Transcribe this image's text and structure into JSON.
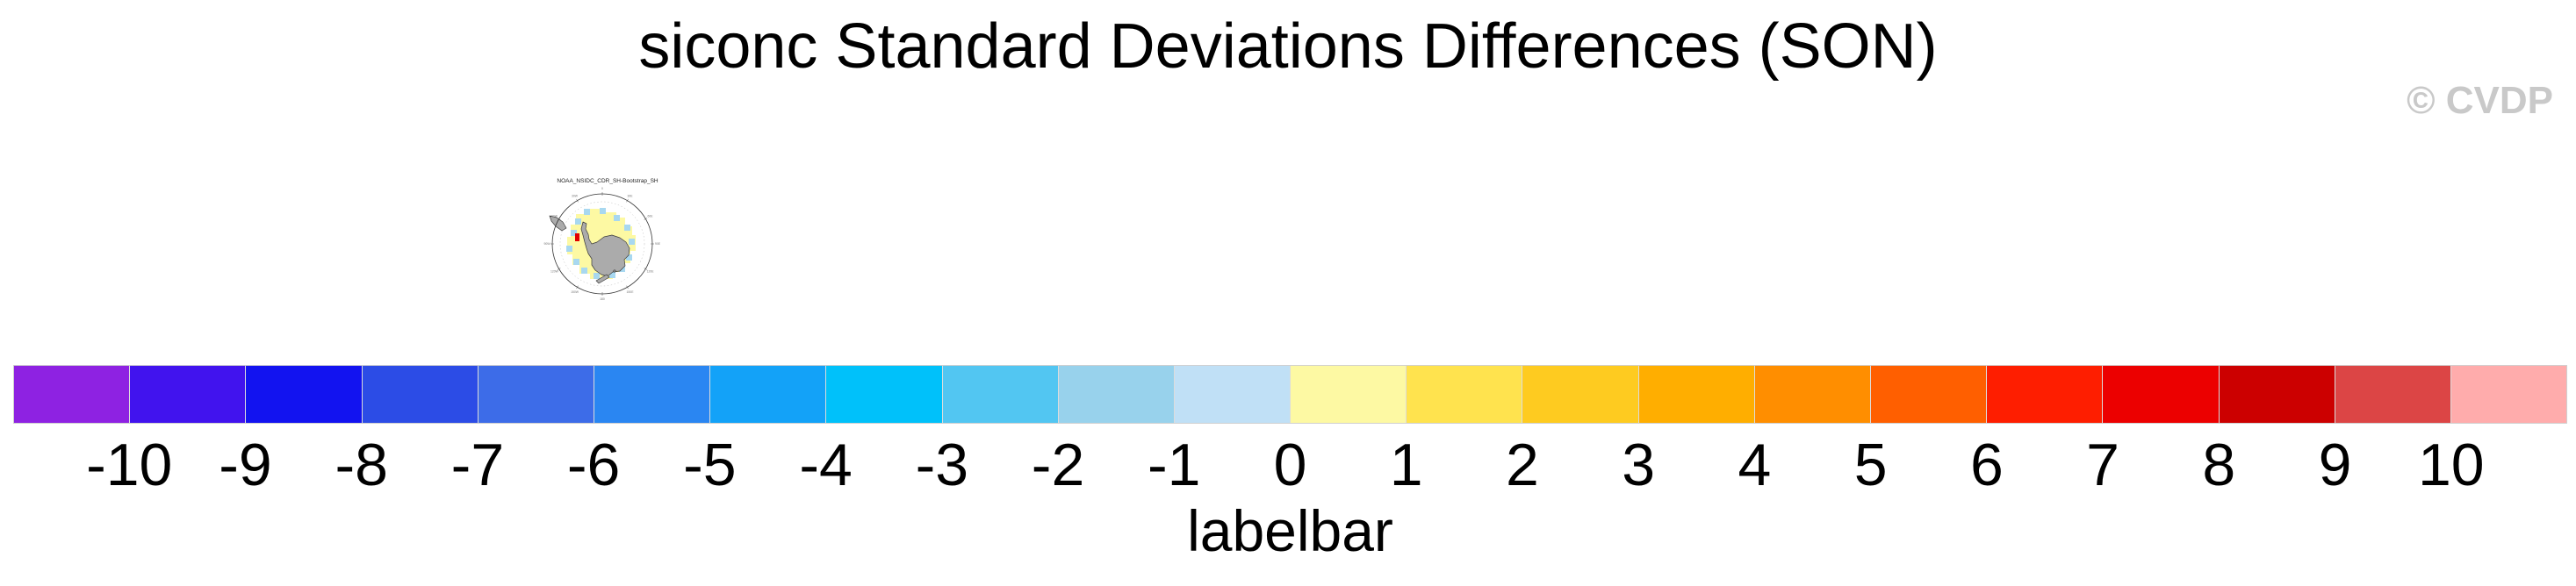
{
  "title": "siconc Standard Deviations Differences (SON)",
  "watermark": "© CVDP",
  "map": {
    "title": "NOAA_NSIDC_CDR_SH-Bootstrap_SH",
    "projection_labels": [
      "0",
      "30E",
      "60E",
      "90E",
      "120E",
      "150E",
      "180",
      "150W",
      "120W",
      "90W",
      "60W",
      "30W"
    ],
    "land_color": "#ababab",
    "fill_colors": {
      "diff_0_to_1": "#fdf9a3",
      "diff_minus1_to_0": "#a8d8f0",
      "diff_high_positive": "#e00000"
    }
  },
  "colorbar": {
    "label": "labelbar",
    "tick_labels": [
      "-10",
      "-9",
      "-8",
      "-7",
      "-6",
      "-5",
      "-4",
      "-3",
      "-2",
      "-1",
      "0",
      "1",
      "2",
      "3",
      "4",
      "5",
      "6",
      "7",
      "8",
      "9",
      "10"
    ],
    "colors": [
      "#8e22e2",
      "#4113ee",
      "#1213f0",
      "#2c4ce6",
      "#3d6ce8",
      "#2a86f2",
      "#13a2f8",
      "#00c1fa",
      "#52c6f2",
      "#98d2ec",
      "#c0e0f6",
      "#fdf9a3",
      "#ffe34e",
      "#fecb20",
      "#ffae00",
      "#ff8e00",
      "#ff5f00",
      "#fe1e00",
      "#ec0000",
      "#cc0000",
      "#dc4545",
      "#ffacac"
    ]
  },
  "chart_data": {
    "type": "heatmap",
    "title": "siconc Standard Deviations Differences (SON)",
    "panel_title": "NOAA_NSIDC_CDR_SH-Bootstrap_SH",
    "projection": "southern-hemisphere polar stereographic",
    "colorbar_label": "labelbar",
    "levels": [
      -10,
      -9,
      -8,
      -7,
      -6,
      -5,
      -4,
      -3,
      -2,
      -1,
      0,
      1,
      2,
      3,
      4,
      5,
      6,
      7,
      8,
      9,
      10
    ],
    "colors": [
      "#8e22e2",
      "#4113ee",
      "#1213f0",
      "#2c4ce6",
      "#3d6ce8",
      "#2a86f2",
      "#13a2f8",
      "#00c1fa",
      "#52c6f2",
      "#98d2ec",
      "#c0e0f6",
      "#fdf9a3",
      "#ffe34e",
      "#fecb20",
      "#ffae00",
      "#ff8e00",
      "#ff5f00",
      "#fe1e00",
      "#ec0000",
      "#cc0000",
      "#dc4545",
      "#ffacac"
    ],
    "map_fill_summary": {
      "dominant_band": "0 to 1 (pale yellow) ring around Antarctica",
      "secondary_band": "-1 to 0 (light blue) cells at the sea-ice edge",
      "outlier": "one high positive (red) cell west of the Antarctic Peninsula"
    },
    "legend_position": "bottom full-width labelbar",
    "grid": false
  }
}
